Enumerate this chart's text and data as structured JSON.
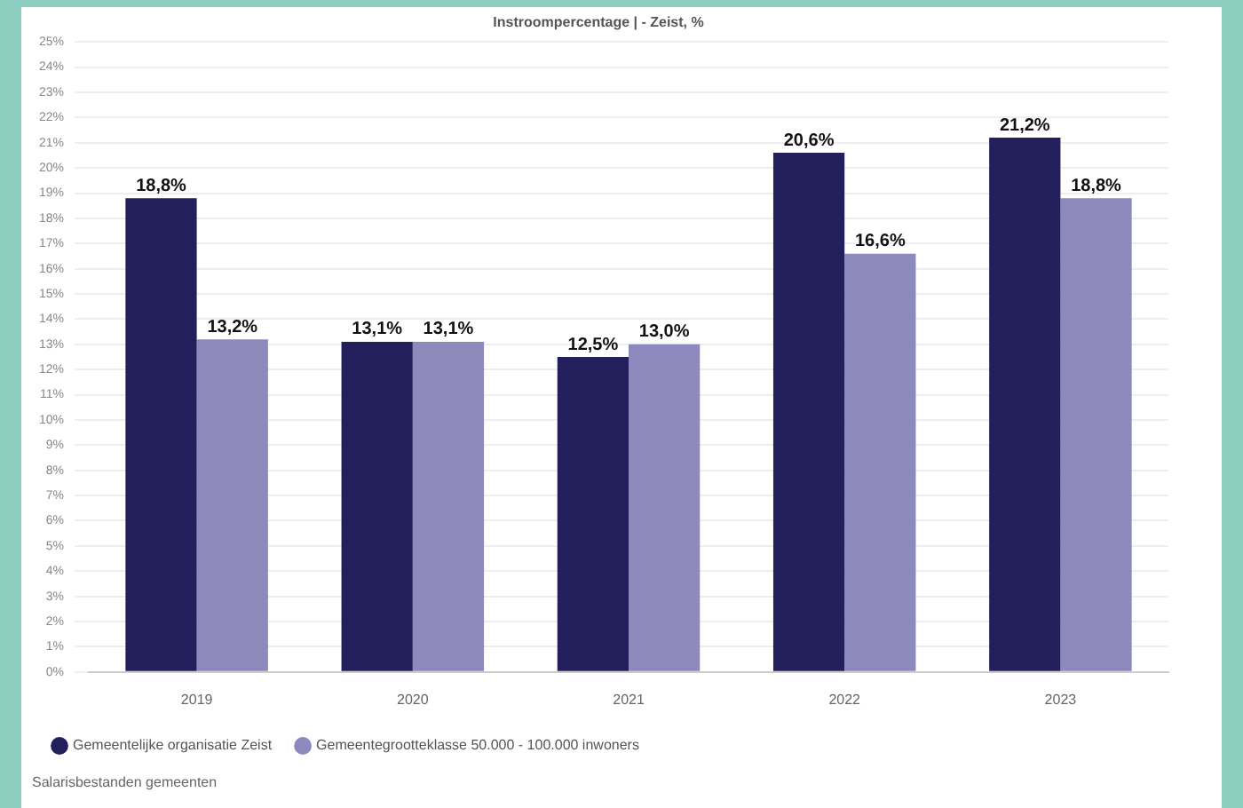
{
  "chart_data": {
    "type": "bar",
    "title": "Instroompercentage | - Zeist, %",
    "categories": [
      "2019",
      "2020",
      "2021",
      "2022",
      "2023"
    ],
    "series": [
      {
        "name": "Gemeentelijke organisatie Zeist",
        "color": "#231f5c",
        "values": [
          18.8,
          13.1,
          12.5,
          20.6,
          21.2
        ],
        "value_labels": [
          "18,8%",
          "13,1%",
          "12,5%",
          "20,6%",
          "21,2%"
        ]
      },
      {
        "name": "Gemeentegrootteklasse 50.000 - 100.000 inwoners",
        "color": "#8e89bc",
        "values": [
          13.2,
          13.1,
          13.0,
          16.6,
          18.8
        ],
        "value_labels": [
          "13,2%",
          "13,1%",
          "13,0%",
          "16,6%",
          "18,8%"
        ]
      }
    ],
    "ylim": [
      0,
      25
    ],
    "yticks": [
      {
        "value": 0,
        "label": "0%"
      },
      {
        "value": 1,
        "label": "1%"
      },
      {
        "value": 2,
        "label": "2%"
      },
      {
        "value": 3,
        "label": "3%"
      },
      {
        "value": 4,
        "label": "4%"
      },
      {
        "value": 5,
        "label": "5%"
      },
      {
        "value": 6,
        "label": "6%"
      },
      {
        "value": 7,
        "label": "7%"
      },
      {
        "value": 8,
        "label": "8%"
      },
      {
        "value": 9,
        "label": "9%"
      },
      {
        "value": 10,
        "label": "10%"
      },
      {
        "value": 11,
        "label": "11%"
      },
      {
        "value": 12,
        "label": "12%"
      },
      {
        "value": 13,
        "label": "13%"
      },
      {
        "value": 14,
        "label": "14%"
      },
      {
        "value": 15,
        "label": "15%"
      },
      {
        "value": 16,
        "label": "16%"
      },
      {
        "value": 17,
        "label": "17%"
      },
      {
        "value": 18,
        "label": "18%"
      },
      {
        "value": 19,
        "label": "19%"
      },
      {
        "value": 20,
        "label": "20%"
      },
      {
        "value": 21,
        "label": "21%"
      },
      {
        "value": 22,
        "label": "22%"
      },
      {
        "value": 23,
        "label": "23%"
      },
      {
        "value": 24,
        "label": "24%"
      },
      {
        "value": 25,
        "label": "25%"
      }
    ],
    "grid": "y",
    "legend": "bottom left",
    "annotations": [
      "Salarisbestanden gemeenten"
    ]
  }
}
